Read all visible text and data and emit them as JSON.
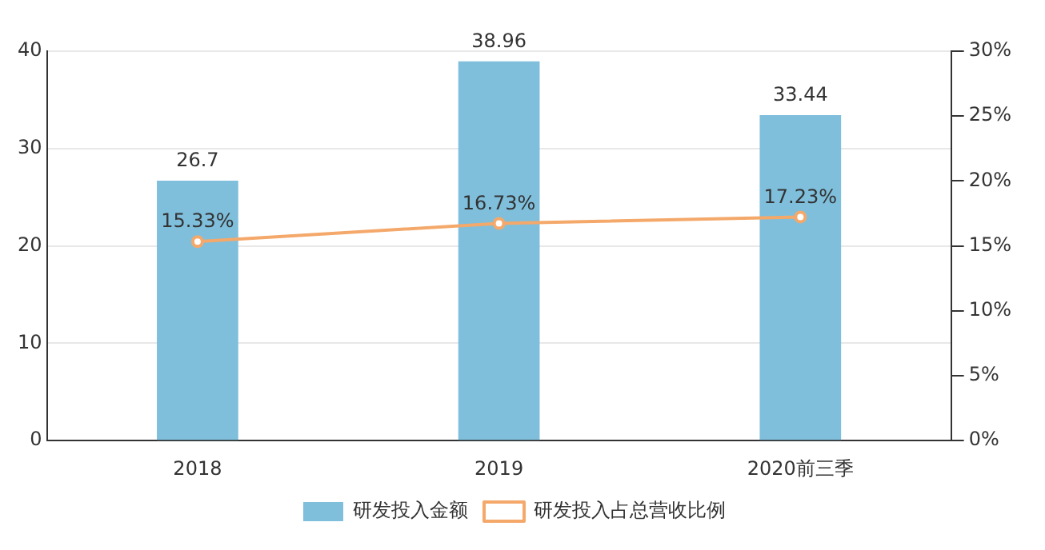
{
  "chart_data": {
    "type": "bar",
    "categories": [
      "2018",
      "2019",
      "2020前三季"
    ],
    "series": [
      {
        "name": "研发投入金额",
        "color": "#7fbfdc",
        "values": [
          26.7,
          38.96,
          33.44
        ],
        "value_labels": [
          "26.7",
          "38.96",
          "33.44"
        ]
      },
      {
        "name": "研发投入占总营收比例",
        "type": "line",
        "axis": "y2",
        "color": "#f4a86a",
        "values": [
          15.33,
          16.73,
          17.23
        ],
        "value_labels": [
          "15.33%",
          "16.73%",
          "17.23%"
        ]
      }
    ],
    "ylim": [
      0,
      40
    ],
    "yticks": [
      0,
      10,
      20,
      30,
      40
    ],
    "y2lim": [
      0,
      30
    ],
    "y2ticks": [
      {
        "value": 0,
        "label": "0%"
      },
      {
        "value": 5,
        "label": "5%"
      },
      {
        "value": 10,
        "label": "10%"
      },
      {
        "value": 15,
        "label": "15%"
      },
      {
        "value": 20,
        "label": "20%"
      },
      {
        "value": 25,
        "label": "25%"
      },
      {
        "value": 30,
        "label": "30%"
      }
    ],
    "grid": "y",
    "legend": "bottom",
    "marker": "circle"
  }
}
